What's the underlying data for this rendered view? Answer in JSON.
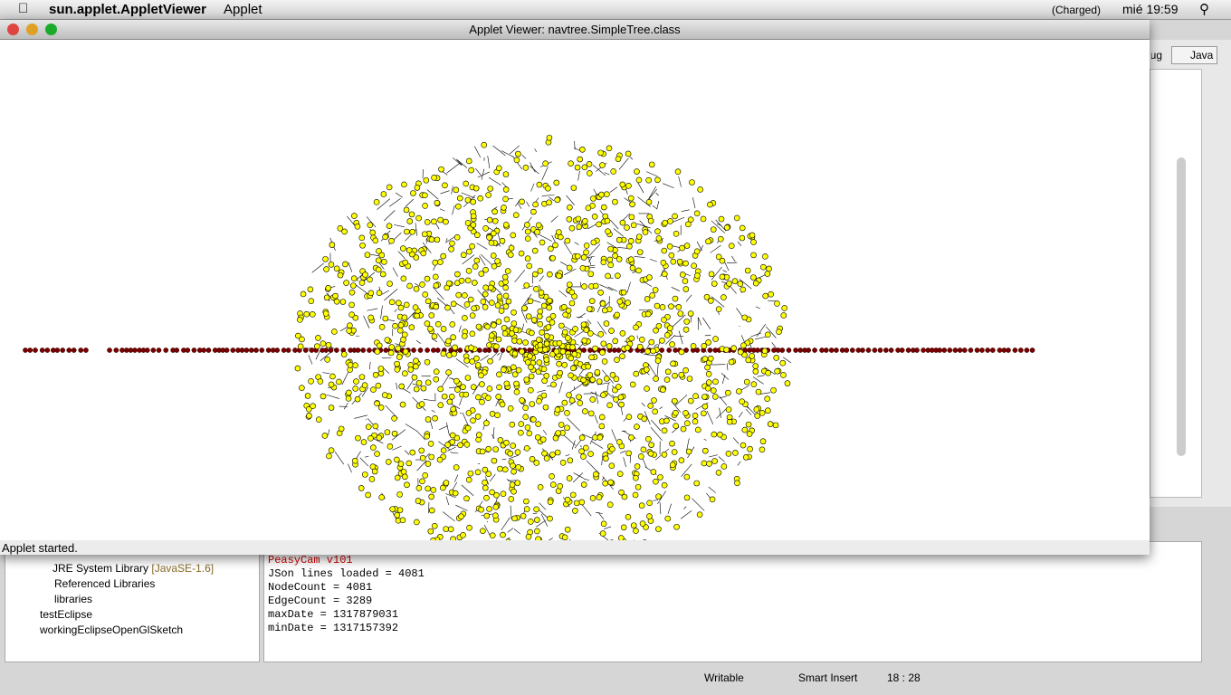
{
  "menubar": {
    "app": "sun.applet.AppletViewer",
    "menu": "Applet",
    "battery": "(Charged)",
    "clock": "mié 19:59"
  },
  "applet": {
    "title": "Applet Viewer: navtree.SimpleTree.class",
    "status": "Applet started."
  },
  "eclipse": {
    "perspectives": [
      "bug",
      "Java"
    ],
    "tree": [
      {
        "label": "JRE System Library",
        "detail": "[JavaSE-1.6]"
      },
      {
        "label": "Referenced Libraries"
      },
      {
        "label": "libraries"
      },
      {
        "label": "testEclipse"
      },
      {
        "label": "workingEclipseOpenGlSketch"
      }
    ],
    "console": [
      "PeasyCam v101",
      "JSon lines loaded = 4081",
      "NodeCount = 4081",
      "EdgeCount = 3289",
      "maxDate = 1317879031",
      "minDate = 1317157392"
    ],
    "statusbar": [
      "Writable",
      "Smart Insert",
      "18 : 28"
    ]
  }
}
